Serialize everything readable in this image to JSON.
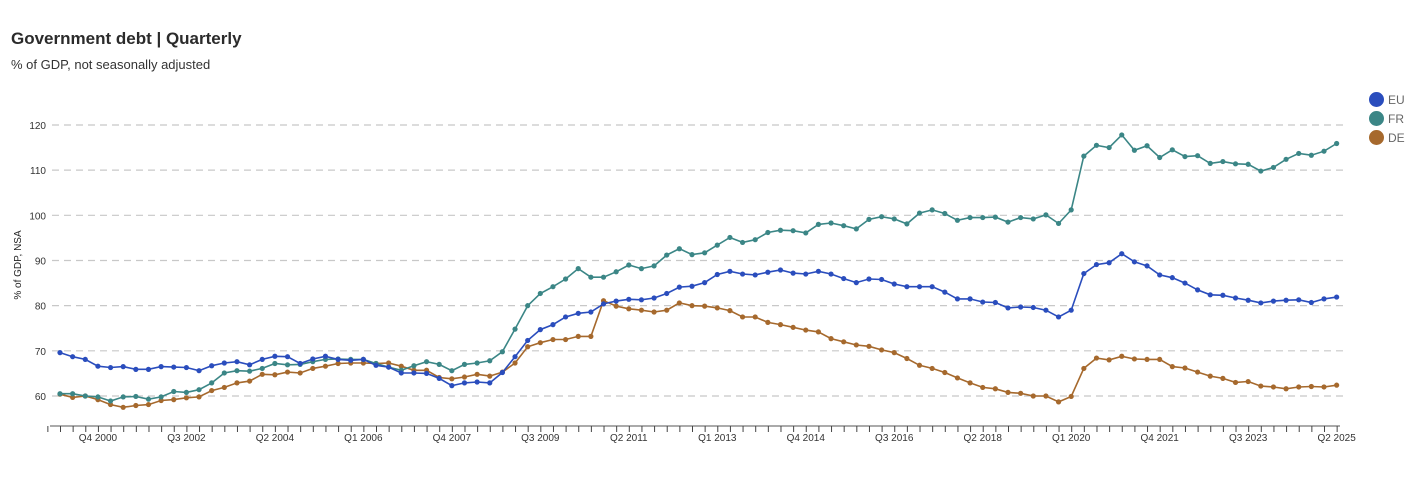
{
  "title": "Government debt | Quarterly",
  "subtitle": "% of GDP, not seasonally adjusted",
  "chart_data": {
    "type": "line",
    "title": "Government debt | Quarterly",
    "subtitle": "% of GDP, not seasonally adjusted",
    "xlabel": "",
    "ylabel": "% of GDP, NSA",
    "x_start": "Q1 2000",
    "x_end": "Q2 2025",
    "ylim": [
      53,
      122
    ],
    "yticks": [
      60,
      70,
      80,
      90,
      100,
      110,
      120
    ],
    "grid": "horizontal dashed",
    "legend_position": "right",
    "x_tick_labels": [
      {
        "index": 3,
        "label": "Q4 2000"
      },
      {
        "index": 10,
        "label": "Q3 2002"
      },
      {
        "index": 17,
        "label": "Q2 2004"
      },
      {
        "index": 24,
        "label": "Q1 2006"
      },
      {
        "index": 31,
        "label": "Q4 2007"
      },
      {
        "index": 38,
        "label": "Q3 2009"
      },
      {
        "index": 45,
        "label": "Q2 2011"
      },
      {
        "index": 52,
        "label": "Q1 2013"
      },
      {
        "index": 59,
        "label": "Q4 2014"
      },
      {
        "index": 66,
        "label": "Q3 2016"
      },
      {
        "index": 73,
        "label": "Q2 2018"
      },
      {
        "index": 80,
        "label": "Q1 2020"
      },
      {
        "index": 87,
        "label": "Q4 2021"
      },
      {
        "index": 94,
        "label": "Q3 2023"
      },
      {
        "index": 101,
        "label": "Q2 2025"
      }
    ],
    "series": [
      {
        "name": "EU",
        "color": "#2a4dbd",
        "values": [
          69.6,
          68.7,
          68.1,
          66.6,
          66.3,
          66.5,
          65.9,
          65.9,
          66.5,
          66.4,
          66.3,
          65.6,
          66.7,
          67.3,
          67.6,
          66.9,
          68.1,
          68.8,
          68.7,
          67.2,
          68.2,
          68.8,
          68.1,
          67.9,
          68.1,
          66.8,
          66.4,
          65.1,
          65.1,
          65.0,
          63.9,
          62.3,
          62.9,
          63.1,
          62.9,
          65.2,
          68.7,
          72.3,
          74.7,
          75.8,
          77.5,
          78.3,
          78.6,
          80.4,
          81.0,
          81.4,
          81.3,
          81.7,
          82.7,
          84.1,
          84.3,
          85.1,
          86.9,
          87.6,
          87.0,
          86.8,
          87.4,
          87.9,
          87.2,
          87.0,
          87.6,
          87.0,
          86.0,
          85.1,
          85.9,
          85.8,
          84.8,
          84.2,
          84.2,
          84.2,
          83.0,
          81.5,
          81.5,
          80.8,
          80.7,
          79.5,
          79.7,
          79.6,
          79.0,
          77.5,
          79.0,
          87.1,
          89.1,
          89.5,
          91.5,
          89.7,
          88.8,
          86.8,
          86.2,
          85.0,
          83.5,
          82.4,
          82.3,
          81.7,
          81.2,
          80.6,
          81.0,
          81.2,
          81.3,
          80.7,
          81.5,
          81.9
        ]
      },
      {
        "name": "FR",
        "color": "#3b8686",
        "values": [
          60.5,
          60.5,
          60.0,
          59.8,
          58.9,
          59.8,
          59.9,
          59.3,
          59.8,
          61.0,
          60.8,
          61.4,
          62.9,
          65.1,
          65.6,
          65.5,
          66.1,
          67.2,
          66.9,
          67.0,
          67.6,
          68.1,
          68.2,
          68.1,
          68.1,
          67.2,
          66.4,
          65.7,
          66.7,
          67.6,
          67.0,
          65.6,
          67.0,
          67.3,
          67.8,
          69.8,
          74.8,
          80.0,
          82.7,
          84.2,
          85.9,
          88.2,
          86.3,
          86.3,
          87.5,
          89.0,
          88.2,
          88.8,
          91.2,
          92.6,
          91.3,
          91.7,
          93.4,
          95.1,
          94.0,
          94.6,
          96.2,
          96.7,
          96.6,
          96.1,
          98.0,
          98.3,
          97.7,
          97.0,
          99.1,
          99.7,
          99.2,
          98.1,
          100.5,
          101.2,
          100.4,
          98.9,
          99.5,
          99.5,
          99.6,
          98.5,
          99.5,
          99.2,
          100.1,
          98.2,
          101.2,
          113.1,
          115.5,
          115.0,
          117.8,
          114.4,
          115.4,
          112.8,
          114.5,
          113.0,
          113.2,
          111.5,
          111.9,
          111.4,
          111.3,
          109.8,
          110.6,
          112.4,
          113.7,
          113.3,
          114.2,
          115.9
        ]
      },
      {
        "name": "DE",
        "color": "#a6692d",
        "values": [
          60.4,
          59.7,
          60.0,
          59.2,
          58.1,
          57.5,
          57.9,
          58.1,
          59.0,
          59.2,
          59.6,
          59.8,
          61.2,
          61.9,
          62.9,
          63.3,
          64.8,
          64.7,
          65.3,
          65.1,
          66.1,
          66.6,
          67.2,
          67.3,
          67.3,
          67.2,
          67.3,
          66.6,
          65.7,
          65.7,
          64.1,
          63.8,
          64.2,
          64.8,
          64.4,
          65.3,
          67.3,
          70.9,
          71.8,
          72.5,
          72.5,
          73.2,
          73.2,
          81.1,
          79.9,
          79.3,
          79.0,
          78.6,
          79.0,
          80.6,
          80.0,
          79.9,
          79.5,
          78.9,
          77.5,
          77.5,
          76.3,
          75.8,
          75.2,
          74.6,
          74.2,
          72.7,
          72.0,
          71.3,
          71.0,
          70.2,
          69.6,
          68.3,
          66.8,
          66.1,
          65.2,
          64.0,
          62.9,
          61.9,
          61.6,
          60.8,
          60.6,
          60.0,
          60.0,
          58.7,
          59.9,
          66.1,
          68.4,
          68.0,
          68.8,
          68.2,
          68.1,
          68.1,
          66.5,
          66.2,
          65.3,
          64.4,
          63.9,
          63.0,
          63.2,
          62.2,
          62.0,
          61.6,
          62.0,
          62.1,
          62.0,
          62.4
        ]
      }
    ]
  }
}
